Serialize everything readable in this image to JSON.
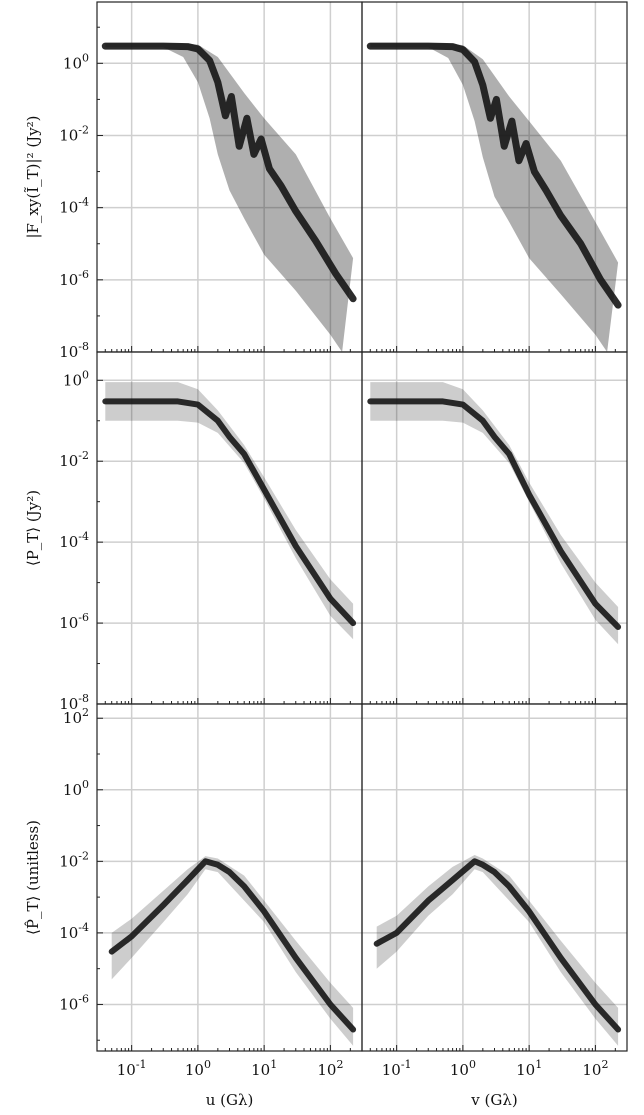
{
  "chart_data": {
    "type": "line",
    "layout": "3 rows x 2 columns, shared axes",
    "x_scale": "log",
    "y_scale": "log",
    "xlim": [
      0.03,
      300
    ],
    "grid": true,
    "legend": "none",
    "colors": {
      "ink": "#161616",
      "band": "#1a1a1a",
      "grid": "#cfcfcf",
      "axes": "#222222"
    },
    "x_ticks": {
      "values": [
        0.1,
        1,
        10,
        100
      ],
      "labels": [
        "10^-1",
        "10^0",
        "10^1",
        "10^2"
      ]
    },
    "x_labels": {
      "left": "u (Gλ)",
      "right": "v (Gλ)"
    },
    "rows": [
      {
        "ylabel": "|F_xy(Ĩ_T)|² (Jy²)",
        "ylim": [
          1e-08,
          50
        ],
        "y_ticks": {
          "values": [
            1e-08,
            1e-06,
            0.0001,
            0.01,
            1
          ],
          "labels": [
            "10^-8",
            "10^-6",
            "10^-4",
            "10^-2",
            "10^0"
          ]
        },
        "panels": [
          {
            "column": "u",
            "median": {
              "x": [
                0.04,
                0.3,
                0.7,
                1.0,
                1.5,
                2.0,
                2.6,
                3.2,
                4.2,
                5.5,
                7,
                9,
                12,
                18,
                30,
                60,
                120,
                220
              ],
              "y": [
                3,
                3,
                2.9,
                2.5,
                1.2,
                0.3,
                0.035,
                0.12,
                0.005,
                0.03,
                0.003,
                0.008,
                0.0012,
                0.0004,
                8e-05,
                1.2e-05,
                1.5e-06,
                3e-07
              ]
            },
            "upper": {
              "x": [
                0.04,
                0.5,
                1.0,
                2.0,
                5,
                10,
                30,
                100,
                220
              ],
              "y": [
                3.6,
                3.6,
                3.3,
                1.5,
                0.15,
                0.03,
                0.003,
                5e-05,
                4e-06
              ]
            },
            "lower": {
              "x": [
                0.04,
                0.3,
                0.6,
                1.0,
                1.5,
                2.0,
                3,
                5,
                10,
                30,
                100,
                150
              ],
              "y": [
                2.8,
                2.8,
                1.5,
                0.3,
                0.03,
                0.003,
                0.0003,
                5e-05,
                5e-06,
                5e-07,
                3e-08,
                1e-08
              ]
            }
          },
          {
            "column": "v",
            "median": {
              "x": [
                0.04,
                0.3,
                0.7,
                1.0,
                1.5,
                2.0,
                2.6,
                3.2,
                4.2,
                5.5,
                7,
                9,
                12,
                18,
                30,
                60,
                120,
                220
              ],
              "y": [
                3,
                3,
                2.9,
                2.4,
                1.1,
                0.25,
                0.03,
                0.1,
                0.005,
                0.025,
                0.002,
                0.006,
                0.001,
                0.0003,
                6e-05,
                1e-05,
                1e-06,
                2e-07
              ]
            },
            "upper": {
              "x": [
                0.04,
                0.5,
                1.0,
                2.0,
                5,
                10,
                30,
                100,
                220
              ],
              "y": [
                3.6,
                3.6,
                3.2,
                1.3,
                0.12,
                0.025,
                0.002,
                4e-05,
                3e-06
              ]
            },
            "lower": {
              "x": [
                0.04,
                0.3,
                0.6,
                1.0,
                1.5,
                2.0,
                3,
                5,
                10,
                30,
                100,
                150
              ],
              "y": [
                2.8,
                2.8,
                1.4,
                0.25,
                0.025,
                0.0025,
                0.0002,
                4e-05,
                4e-06,
                4e-07,
                3e-08,
                1e-08
              ]
            }
          }
        ]
      },
      {
        "ylabel": "⟨P_T⟩ (Jy²)",
        "ylim": [
          1e-08,
          5
        ],
        "y_ticks": {
          "values": [
            1e-08,
            1e-06,
            0.0001,
            0.01,
            1
          ],
          "labels": [
            "10^-8",
            "10^-6",
            "10^-4",
            "10^-2",
            "10^0"
          ]
        },
        "panels": [
          {
            "column": "u",
            "median": {
              "x": [
                0.04,
                0.5,
                1.0,
                2.0,
                3,
                5,
                10,
                30,
                100,
                220
              ],
              "y": [
                0.3,
                0.3,
                0.25,
                0.1,
                0.04,
                0.015,
                0.002,
                8e-05,
                4e-06,
                1e-06
              ]
            },
            "upper": {
              "x": [
                0.04,
                0.5,
                1.0,
                2.0,
                5,
                10,
                30,
                100,
                220
              ],
              "y": [
                0.9,
                0.9,
                0.6,
                0.18,
                0.025,
                0.004,
                0.0002,
                1.2e-05,
                3e-06
              ]
            },
            "lower": {
              "x": [
                0.04,
                0.5,
                1.0,
                2.0,
                5,
                10,
                30,
                100,
                220
              ],
              "y": [
                0.1,
                0.1,
                0.09,
                0.05,
                0.009,
                0.0012,
                4e-05,
                1.5e-06,
                4e-07
              ]
            }
          },
          {
            "column": "v",
            "median": {
              "x": [
                0.04,
                0.5,
                1.0,
                2.0,
                3,
                5,
                10,
                30,
                100,
                220
              ],
              "y": [
                0.3,
                0.3,
                0.25,
                0.1,
                0.04,
                0.015,
                0.0015,
                6e-05,
                3e-06,
                8e-07
              ]
            },
            "upper": {
              "x": [
                0.04,
                0.5,
                1.0,
                2.0,
                5,
                10,
                30,
                100,
                220
              ],
              "y": [
                0.9,
                0.9,
                0.6,
                0.18,
                0.025,
                0.003,
                0.00015,
                1e-05,
                2.5e-06
              ]
            },
            "lower": {
              "x": [
                0.04,
                0.5,
                1.0,
                2.0,
                5,
                10,
                30,
                100,
                220
              ],
              "y": [
                0.1,
                0.1,
                0.09,
                0.05,
                0.009,
                0.001,
                3e-05,
                1.2e-06,
                3e-07
              ]
            }
          }
        ]
      },
      {
        "ylabel": "⟨P̂_T⟩ (unitless)",
        "ylim": [
          5e-08,
          250
        ],
        "y_ticks": {
          "values": [
            1e-06,
            0.0001,
            0.01,
            1,
            100
          ],
          "labels": [
            "10^-6",
            "10^-4",
            "10^-2",
            "10^0",
            "10^2"
          ]
        },
        "panels": [
          {
            "column": "u",
            "median": {
              "x": [
                0.05,
                0.1,
                0.3,
                0.7,
                1.3,
                2,
                3,
                5,
                10,
                30,
                100,
                220
              ],
              "y": [
                3e-05,
                8e-05,
                0.0006,
                0.003,
                0.01,
                0.008,
                0.005,
                0.002,
                0.0004,
                2e-05,
                1e-06,
                2e-07
              ]
            },
            "upper": {
              "x": [
                0.05,
                0.1,
                0.3,
                0.7,
                1.3,
                2,
                5,
                10,
                30,
                100,
                220
              ],
              "y": [
                0.0001,
                0.00025,
                0.0015,
                0.006,
                0.014,
                0.012,
                0.004,
                0.0008,
                6e-05,
                4e-06,
                8e-07
              ]
            },
            "lower": {
              "x": [
                0.05,
                0.1,
                0.3,
                0.7,
                1.3,
                2,
                5,
                10,
                30,
                100,
                220
              ],
              "y": [
                5e-06,
                2e-05,
                0.0002,
                0.0012,
                0.006,
                0.005,
                0.0008,
                0.0002,
                8e-06,
                4e-07,
                7e-08
              ]
            }
          },
          {
            "column": "v",
            "median": {
              "x": [
                0.05,
                0.1,
                0.3,
                0.7,
                1.5,
                2,
                3,
                5,
                10,
                30,
                100,
                220
              ],
              "y": [
                5e-05,
                0.0001,
                0.0008,
                0.003,
                0.01,
                0.008,
                0.005,
                0.002,
                0.0004,
                2e-05,
                1e-06,
                2e-07
              ]
            },
            "upper": {
              "x": [
                0.05,
                0.1,
                0.3,
                0.7,
                1.5,
                2,
                5,
                10,
                30,
                100,
                220
              ],
              "y": [
                0.00015,
                0.0003,
                0.002,
                0.007,
                0.015,
                0.012,
                0.004,
                0.0008,
                6e-05,
                4e-06,
                8e-07
              ]
            },
            "lower": {
              "x": [
                0.05,
                0.1,
                0.3,
                0.7,
                1.5,
                2,
                5,
                10,
                30,
                100,
                220
              ],
              "y": [
                1e-05,
                3e-05,
                0.0003,
                0.0012,
                0.006,
                0.005,
                0.0008,
                0.0002,
                8e-06,
                4e-07,
                7e-08
              ]
            }
          }
        ]
      }
    ]
  }
}
